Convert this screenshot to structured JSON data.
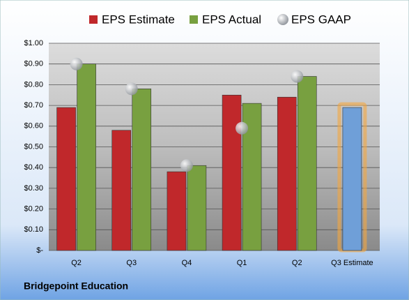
{
  "chart_data": {
    "type": "bar",
    "title": "Bridgepoint Education",
    "categories": [
      "Q2",
      "Q3",
      "Q4",
      "Q1",
      "Q2",
      "Q3 Estimate"
    ],
    "series": [
      {
        "name": "EPS Estimate",
        "color": "#c0282b",
        "colors": [
          "#c0282b",
          "#c0282b",
          "#c0282b",
          "#c0282b",
          "#c0282b",
          "#6f9fd8"
        ],
        "values": [
          0.69,
          0.58,
          0.38,
          0.75,
          0.74,
          0.69
        ]
      },
      {
        "name": "EPS Actual",
        "color": "#78a040",
        "values": [
          0.9,
          0.78,
          0.41,
          0.71,
          0.84,
          null
        ]
      },
      {
        "name": "EPS GAAP",
        "type": "scatter",
        "color": "#b8bcc2",
        "values": [
          0.9,
          0.78,
          0.41,
          0.59,
          0.84,
          null
        ]
      }
    ],
    "ylim": [
      0,
      1
    ],
    "yticks": [
      {
        "value": 0,
        "label": "$-"
      },
      {
        "value": 0.1,
        "label": "$0.10"
      },
      {
        "value": 0.2,
        "label": "$0.20"
      },
      {
        "value": 0.3,
        "label": "$0.30"
      },
      {
        "value": 0.4,
        "label": "$0.40"
      },
      {
        "value": 0.5,
        "label": "$0.50"
      },
      {
        "value": 0.6,
        "label": "$0.60"
      },
      {
        "value": 0.7,
        "label": "$0.70"
      },
      {
        "value": 0.8,
        "label": "$0.80"
      },
      {
        "value": 0.9,
        "label": "$0.90"
      },
      {
        "value": 1,
        "label": "$1.00"
      }
    ],
    "grid": true
  }
}
